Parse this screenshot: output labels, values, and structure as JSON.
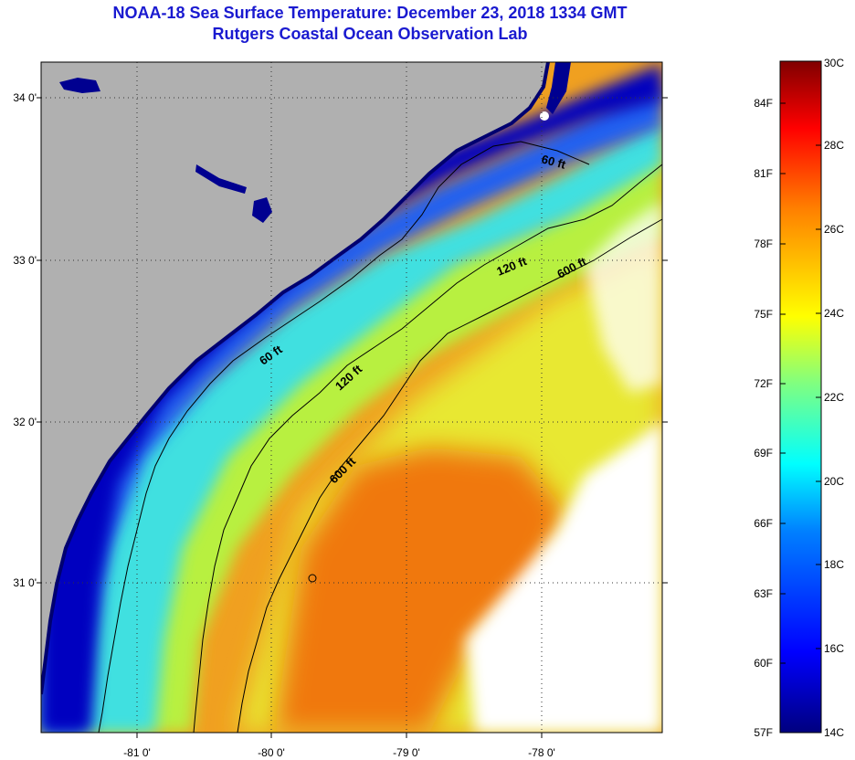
{
  "header": {
    "title": "NOAA-18 Sea Surface Temperature:  December 23, 2018 1334 GMT",
    "subtitle": "Rutgers Coastal Ocean Observation Lab"
  },
  "map": {
    "lat_labels": [
      "34 0'",
      "33 0'",
      "32 0'",
      "31 0'"
    ],
    "lon_labels": [
      "-81 0'",
      "-80 0'",
      "-79 0'",
      "-78 0'"
    ],
    "contours": [
      "60 ft",
      "120 ft",
      "600 ft",
      "60 ft",
      "120 ft",
      "600 ft"
    ],
    "colors": {
      "land": "#b0b0b0",
      "cold": "#00007f",
      "warm": "#f08010",
      "cloud": "#ffffff"
    }
  },
  "colorbar": {
    "fahrenheit": [
      "84F",
      "81F",
      "78F",
      "75F",
      "72F",
      "69F",
      "66F",
      "63F",
      "60F",
      "57F"
    ],
    "celsius": [
      "30C",
      "28C",
      "26C",
      "24C",
      "22C",
      "20C",
      "18C",
      "16C",
      "14C"
    ]
  }
}
